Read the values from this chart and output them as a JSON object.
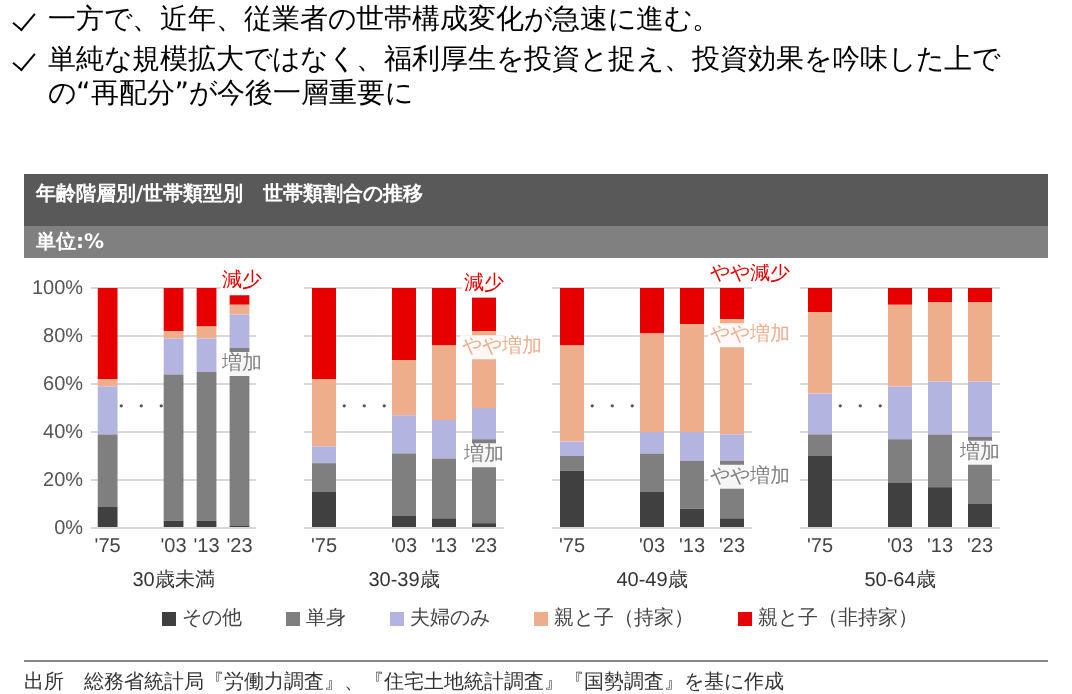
{
  "chart_data": [
    {
      "type": "bar",
      "stacked": true,
      "title": "年齢階層別/世帯類型別　世帯類割合の推移",
      "subtitle": "単位:%",
      "xlabel": "30歳未満",
      "categories": [
        "'75",
        null,
        "'03",
        "'13",
        "'23"
      ],
      "series": [
        {
          "name": "その他",
          "color": "#404040",
          "values": [
            9,
            null,
            3,
            3,
            1
          ]
        },
        {
          "name": "単身",
          "color": "#7f7f7f",
          "values": [
            30,
            null,
            61,
            62,
            74
          ]
        },
        {
          "name": "夫婦のみ",
          "color": "#b4b4e0",
          "values": [
            20,
            null,
            15,
            14,
            14
          ]
        },
        {
          "name": "親と子（持家）",
          "color": "#eeae8c",
          "values": [
            3,
            null,
            3,
            5,
            4
          ]
        },
        {
          "name": "親と子（非持家）",
          "color": "#e60000",
          "values": [
            38,
            null,
            18,
            16,
            4
          ]
        }
      ],
      "ylim": [
        0,
        100
      ],
      "yticks": [
        {
          "value": 0,
          "label": "0%"
        },
        {
          "value": 20,
          "label": "20%"
        },
        {
          "value": 40,
          "label": "40%"
        },
        {
          "value": 60,
          "label": "60%"
        },
        {
          "value": 80,
          "label": "80%"
        },
        {
          "value": 100,
          "label": "100%"
        }
      ],
      "grid": "y",
      "legend": "bottom",
      "annotations": [
        "一方で、近年、従業者の世帯構成変化が急速に進む。",
        "単純な規模拡大ではなく、福利厚生を投資と捉え、投資効果を吟味した上での“再配分”が今後一層重要に",
        "・・・",
        {
          "text": "減少",
          "x": "'23",
          "y": 97
        },
        {
          "text": "増加",
          "x": "'23",
          "y": 75
        },
        "出所　総務省統計局『労働力調査』、『住宅土地統計調査』『国勢調査』を基に作成"
      ]
    },
    {
      "type": "bar",
      "stacked": true,
      "xlabel": "30-39歳",
      "categories": [
        "'75",
        null,
        "'03",
        "'13",
        "'23"
      ],
      "series": [
        {
          "color": "#404040",
          "values": [
            15,
            null,
            5,
            4,
            2
          ]
        },
        {
          "color": "#7f7f7f",
          "values": [
            12,
            null,
            26,
            25,
            35
          ]
        },
        {
          "color": "#b4b4e0",
          "values": [
            7,
            null,
            16,
            16,
            13
          ]
        },
        {
          "color": "#eeae8c",
          "values": [
            28,
            null,
            23,
            31,
            32
          ]
        },
        {
          "color": "#e60000",
          "values": [
            38,
            null,
            30,
            24,
            14
          ]
        }
      ],
      "ylim": [
        0,
        100
      ],
      "yticks": [
        0,
        20,
        40,
        60,
        80,
        100
      ],
      "tick_labels": "x",
      "grid": "y",
      "annotations": [
        "・・・",
        {
          "text": "減少",
          "x": "'23",
          "y": 96
        },
        {
          "text": "やや増加",
          "x": "'23",
          "y": 82
        },
        {
          "text": "増加",
          "x": "'23",
          "y": 37
        }
      ]
    },
    {
      "type": "bar",
      "stacked": true,
      "xlabel": "40-49歳",
      "categories": [
        "'75",
        null,
        "'03",
        "'13",
        "'23"
      ],
      "series": [
        {
          "color": "#404040",
          "values": [
            24,
            null,
            15,
            8,
            4
          ]
        },
        {
          "color": "#7f7f7f",
          "values": [
            6,
            null,
            16,
            20,
            24
          ]
        },
        {
          "color": "#b4b4e0",
          "values": [
            6,
            null,
            9,
            12,
            11
          ]
        },
        {
          "color": "#eeae8c",
          "values": [
            40,
            null,
            41,
            45,
            48
          ]
        },
        {
          "color": "#e60000",
          "values": [
            24,
            null,
            19,
            15,
            13
          ]
        }
      ],
      "ylim": [
        0,
        100
      ],
      "yticks": [
        0,
        20,
        40,
        60,
        80,
        100
      ],
      "tick_labels": "x",
      "grid": "y",
      "annotations": [
        "・・・",
        {
          "text": "やや減少",
          "x": "'23",
          "y": 100
        },
        {
          "text": "やや増加",
          "x": "'23",
          "y": 87
        },
        {
          "text": "やや増加",
          "x": "'23",
          "y": 28
        }
      ]
    },
    {
      "type": "bar",
      "stacked": true,
      "xlabel": "50-64歳",
      "categories": [
        "'75",
        null,
        "'03",
        "'13",
        "'23"
      ],
      "series": [
        {
          "color": "#404040",
          "values": [
            30,
            null,
            19,
            17,
            10
          ]
        },
        {
          "color": "#7f7f7f",
          "values": [
            9,
            null,
            18,
            22,
            28
          ]
        },
        {
          "color": "#b4b4e0",
          "values": [
            17,
            null,
            22,
            22,
            23
          ]
        },
        {
          "color": "#eeae8c",
          "values": [
            34,
            null,
            34,
            33,
            33
          ]
        },
        {
          "color": "#e60000",
          "values": [
            10,
            null,
            7,
            6,
            6
          ]
        }
      ],
      "ylim": [
        0,
        100
      ],
      "yticks": [
        0,
        20,
        40,
        60,
        80,
        100
      ],
      "tick_labels": "x",
      "grid": "y",
      "annotations": [
        "・・・",
        {
          "text": "増加",
          "x": "'23",
          "y": 38
        }
      ]
    }
  ]
}
